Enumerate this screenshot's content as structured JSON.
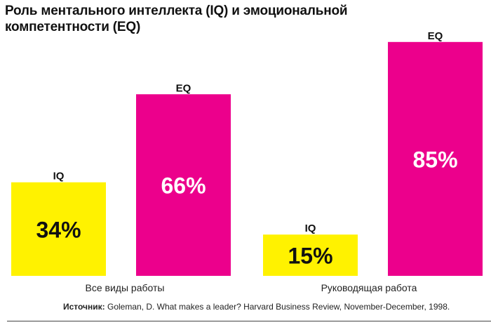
{
  "chart_data": {
    "type": "bar",
    "title": "Роль ментального интеллекта (IQ) и эмоциональной компетентности (EQ)",
    "categories": [
      "Все виды работы",
      "Руководящая работа"
    ],
    "series": [
      {
        "name": "IQ",
        "values": [
          34,
          15
        ],
        "labels": [
          "34%",
          "15%"
        ],
        "color": "#FFF200"
      },
      {
        "name": "EQ",
        "values": [
          66,
          85
        ],
        "labels": [
          "66%",
          "85%"
        ],
        "color": "#EC008C"
      }
    ],
    "ylim": [
      0,
      100
    ],
    "grid": false
  },
  "source": {
    "label": "Источник:",
    "text": " Goleman, D. What makes a leader? Harvard Business Review, November-December, 1998."
  }
}
